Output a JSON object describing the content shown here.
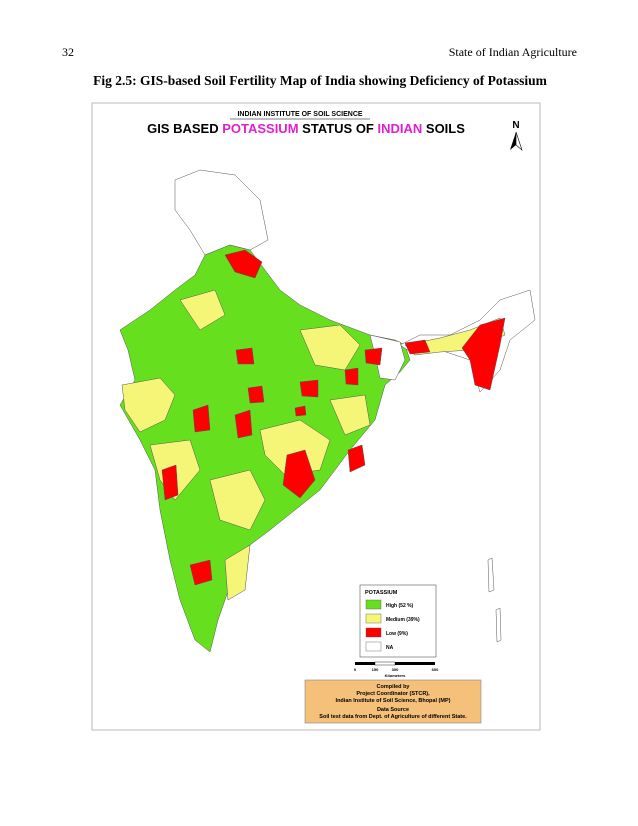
{
  "header": {
    "page_number": "32",
    "running_title": "State of Indian Agriculture"
  },
  "caption": "Fig 2.5: GIS-based Soil Fertility Map of India showing Deficiency of Potassium",
  "map": {
    "institute": "INDIAN INSTITUTE OF SOIL SCIENCE",
    "title_parts": [
      "GIS BASED ",
      "POTASSIUM",
      " STATUS OF ",
      "INDIAN",
      " SOILS"
    ],
    "north": "N"
  },
  "legend": {
    "title": "POTASSIUM",
    "items": [
      "High (52 %)",
      "Medium (39%)",
      "Low (9%)",
      "NA"
    ]
  },
  "scale": {
    "ticks": [
      "0",
      "150",
      "300",
      "600"
    ],
    "unit": "Kilometers"
  },
  "credits": {
    "compiled_label": "Compiled by",
    "compiler": "Project Coordinator (STCR),",
    "institute": "Indian Institute of Soil Science, Bhopal (MP)",
    "source_label": "Data Source",
    "source": "Soil test data from Dept. of Agriculture of different State."
  }
}
